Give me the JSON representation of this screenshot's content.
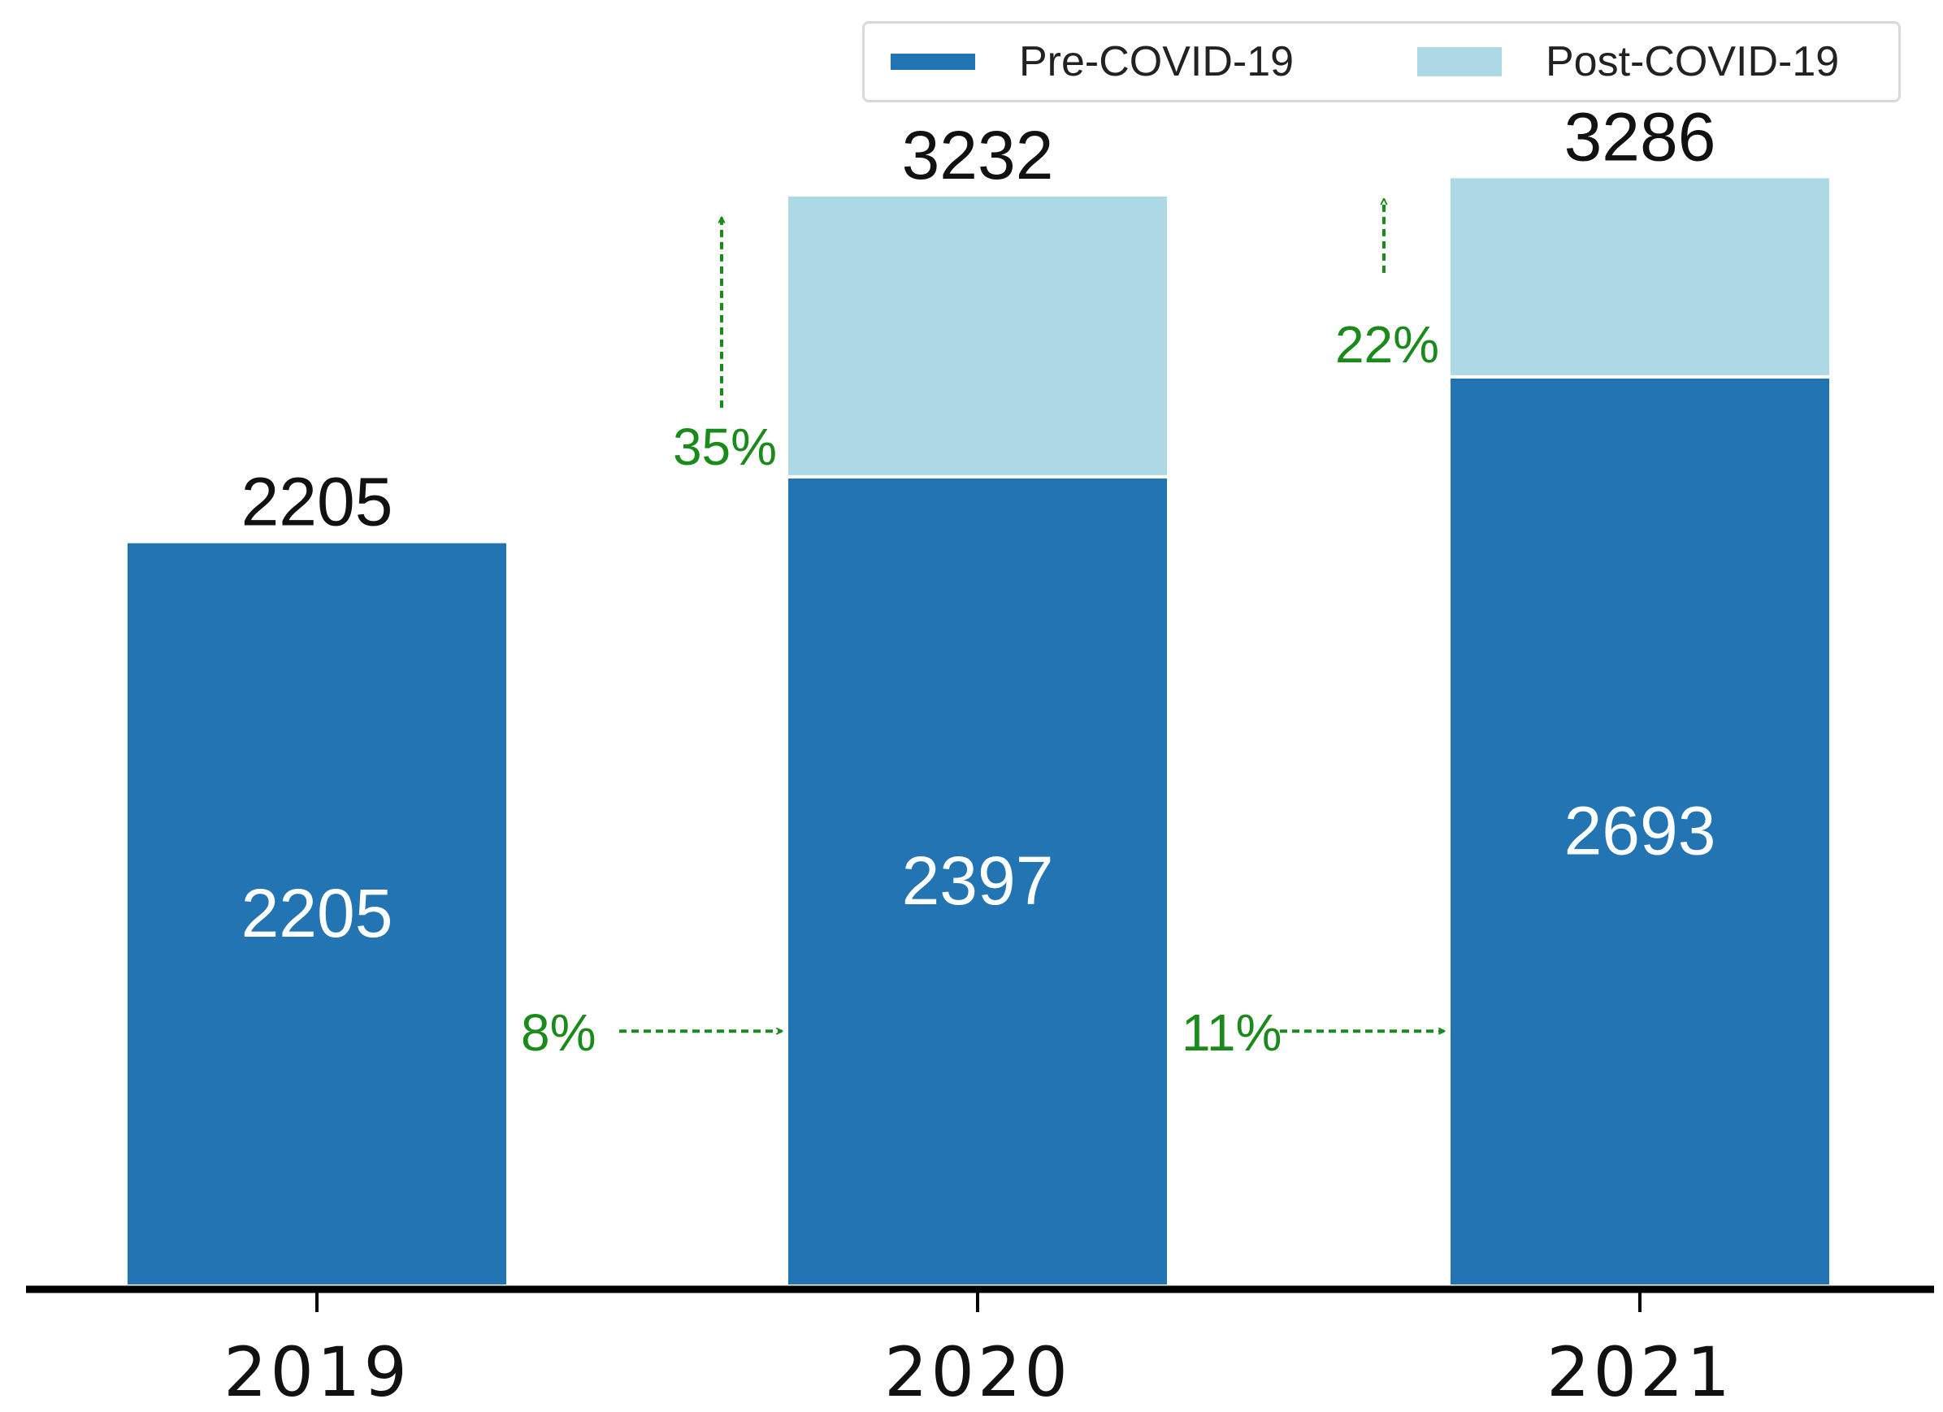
{
  "chart_data": {
    "type": "bar",
    "stacked": true,
    "categories": [
      "2019",
      "2020",
      "2021"
    ],
    "series": [
      {
        "name": "Pre-COVID-19",
        "color": "#2274b2",
        "values": [
          2205,
          2397,
          2693
        ],
        "labels": [
          "2205",
          "2397",
          "2693"
        ]
      },
      {
        "name": "Post-COVID-19",
        "color": "#add8e6",
        "values": [
          0,
          835,
          593
        ]
      }
    ],
    "totals": [
      2205,
      3232,
      3286
    ],
    "total_labels": [
      "2205",
      "3232",
      "3286"
    ],
    "ylim": [
      0,
      3400
    ],
    "legend_position": "top-right",
    "annotations": {
      "color": "#1a8a1a",
      "horizontal_growth": [
        {
          "from": "2019",
          "to": "2020",
          "label": "8%"
        },
        {
          "from": "2020",
          "to": "2021",
          "label": "11%"
        }
      ],
      "vertical_growth": [
        {
          "category": "2020",
          "label": "35%"
        },
        {
          "category": "2021",
          "label": "22%"
        }
      ]
    },
    "title": "",
    "xlabel": "",
    "ylabel": ""
  }
}
